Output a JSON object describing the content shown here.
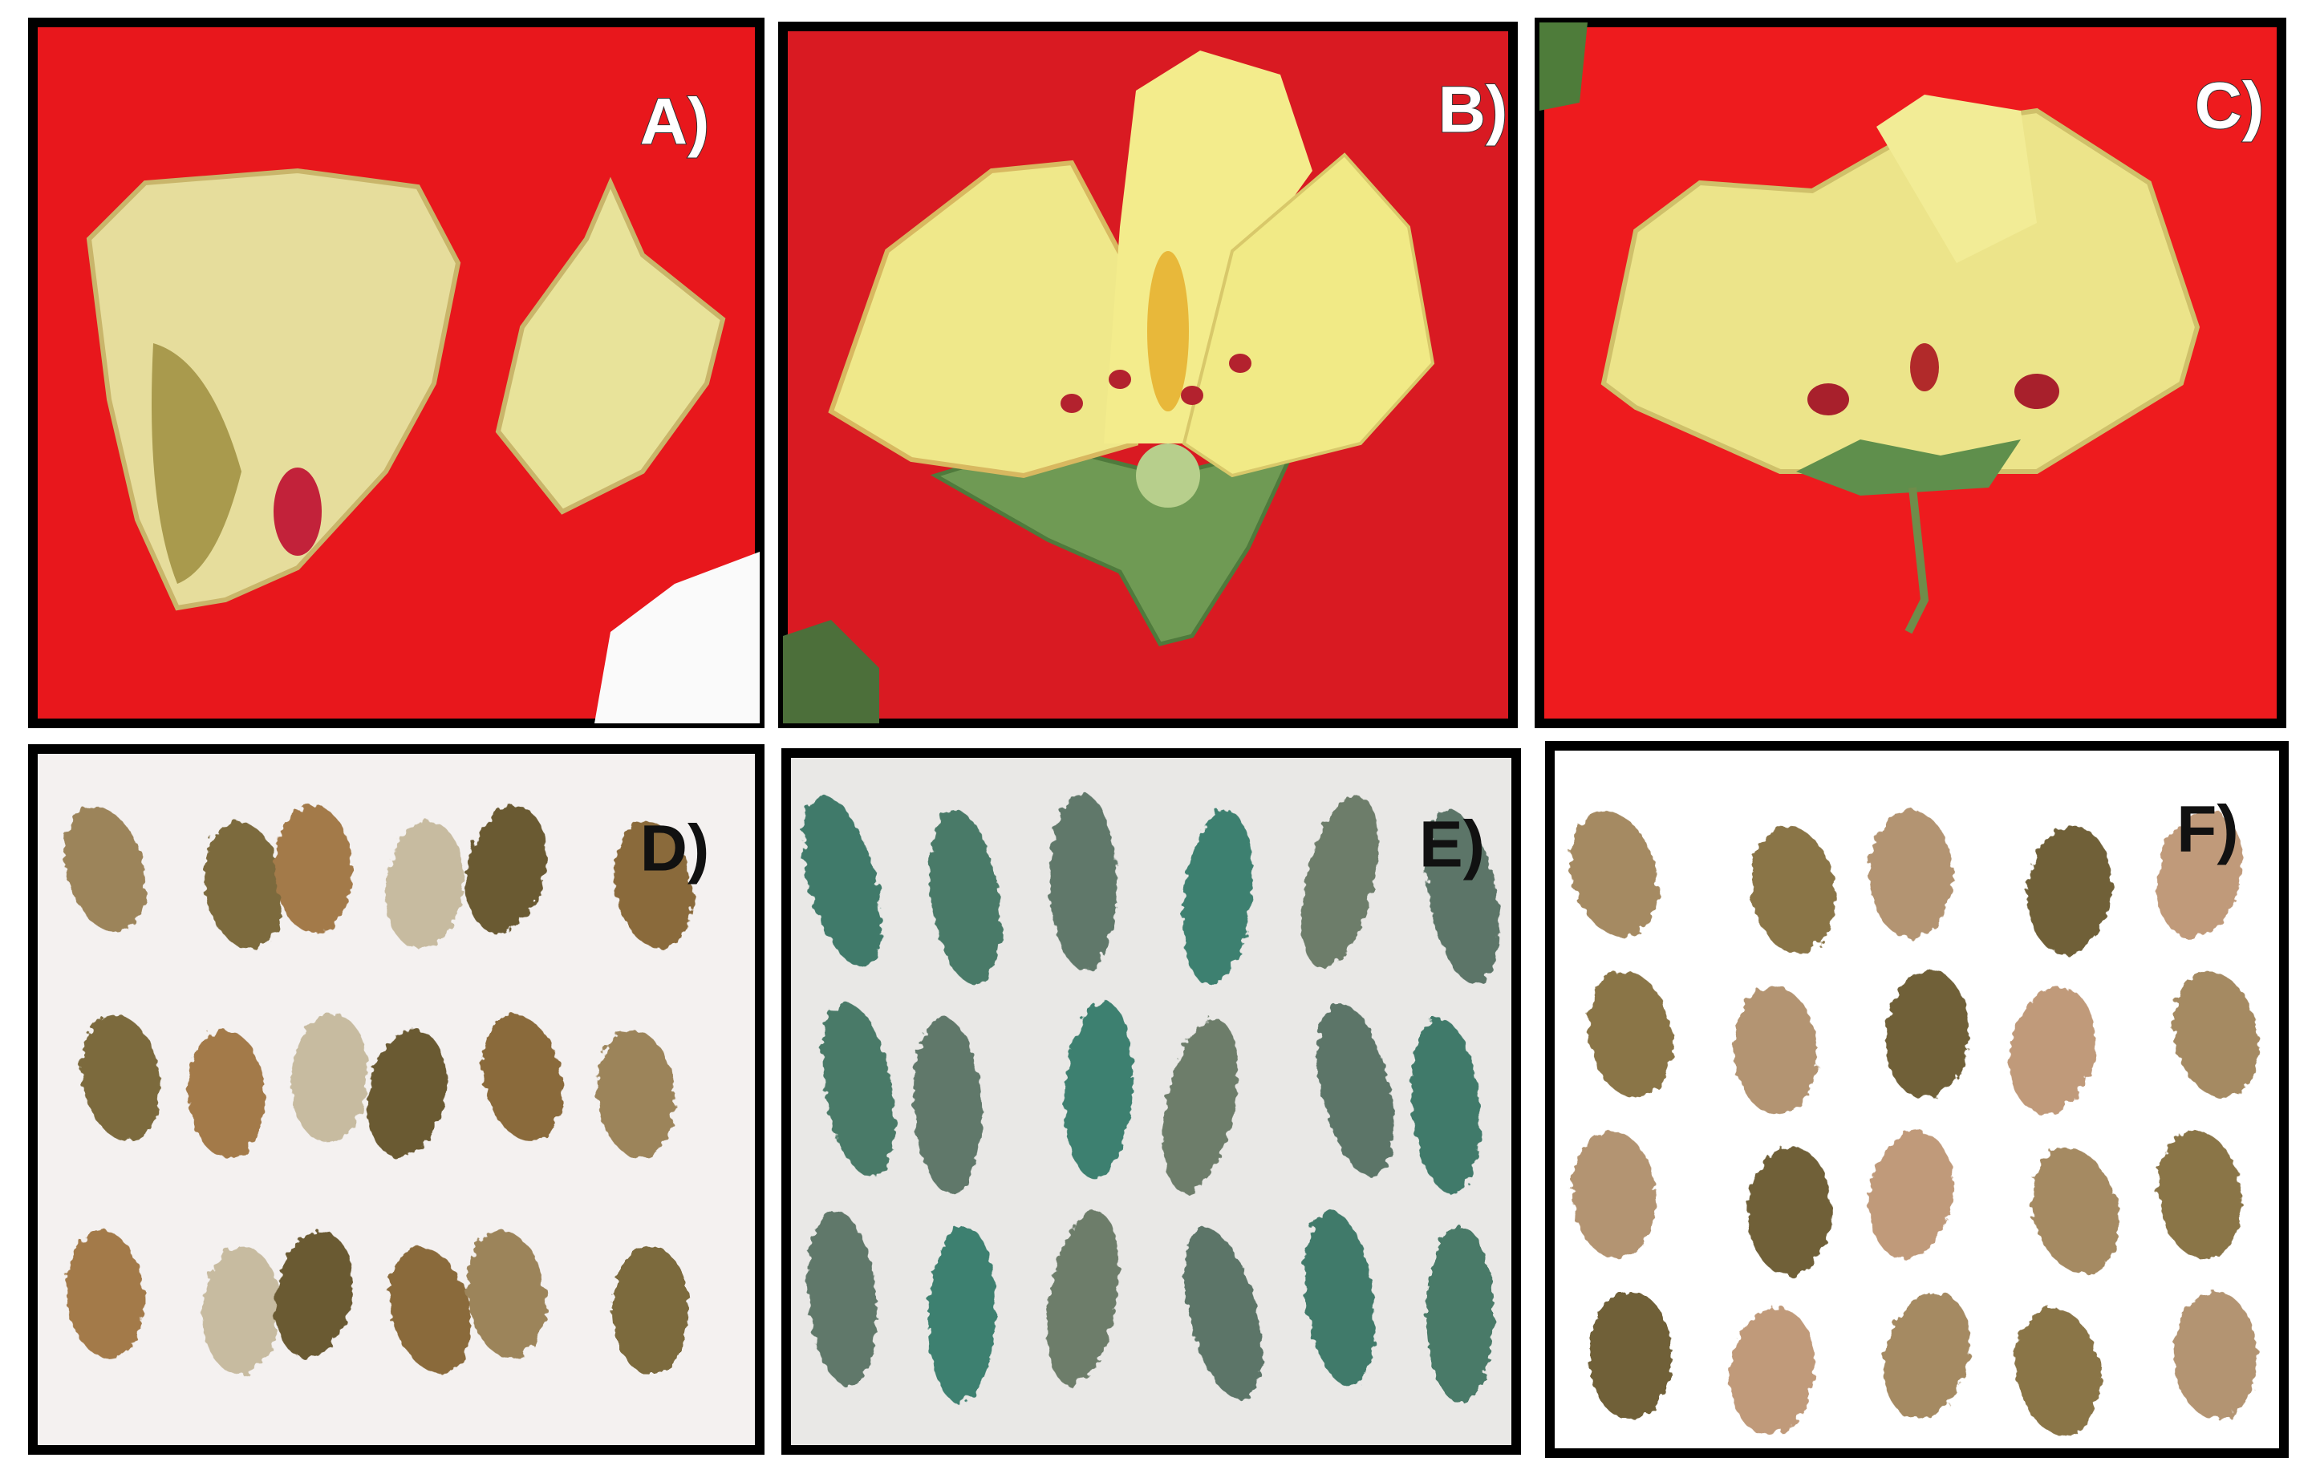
{
  "panels": [
    {
      "label": "A)"
    },
    {
      "label": "B)"
    },
    {
      "label": "C)"
    },
    {
      "label": "D)"
    },
    {
      "label": "E)"
    },
    {
      "label": "F)"
    }
  ]
}
